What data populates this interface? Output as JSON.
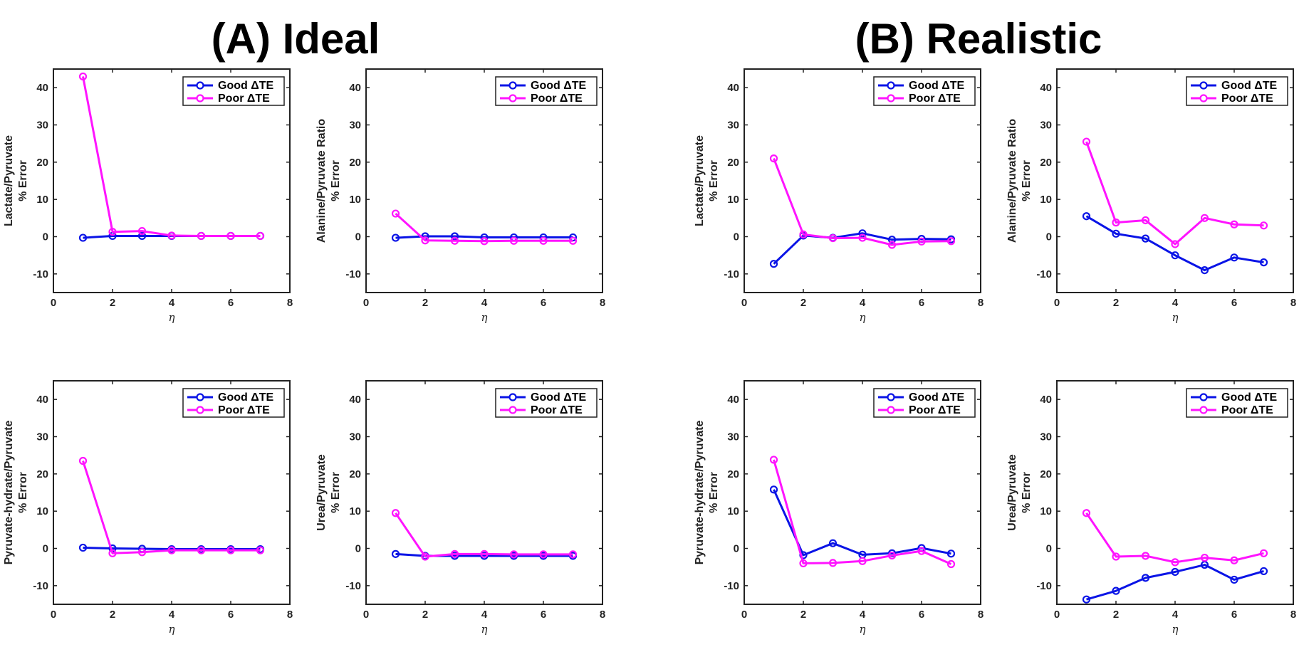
{
  "figure": {
    "title_a": "(A) Ideal",
    "title_b": "(B) Realistic"
  },
  "chart_data": [
    {
      "type": "line",
      "ylabel": [
        "Lactate/Pyruvate",
        "% Error"
      ],
      "xlabel": "η",
      "xlim": [
        0,
        8
      ],
      "ylim": [
        -15,
        45
      ],
      "xticks": [
        0,
        2,
        4,
        6,
        8
      ],
      "yticks": [
        -10,
        0,
        10,
        20,
        30,
        40
      ],
      "x": [
        1,
        2,
        3,
        4,
        5,
        6,
        7
      ],
      "legend_placement": "top-right",
      "series": [
        {
          "name": "Good ΔTE",
          "color": "#0a14e6",
          "values": [
            -0.3,
            0.2,
            0.2,
            0.2,
            0.2,
            0.2,
            0.2
          ]
        },
        {
          "name": "Poor ΔTE",
          "color": "#ff14ff",
          "values": [
            43,
            1.3,
            1.5,
            0.3,
            0.2,
            0.2,
            0.2
          ]
        }
      ]
    },
    {
      "type": "line",
      "ylabel": [
        "Alanine/Pyruvate Ratio",
        "% Error"
      ],
      "xlabel": "η",
      "xlim": [
        0,
        8
      ],
      "ylim": [
        -15,
        45
      ],
      "xticks": [
        0,
        2,
        4,
        6,
        8
      ],
      "yticks": [
        -10,
        0,
        10,
        20,
        30,
        40
      ],
      "x": [
        1,
        2,
        3,
        4,
        5,
        6,
        7
      ],
      "legend_placement": "top-right",
      "series": [
        {
          "name": "Good ΔTE",
          "color": "#0a14e6",
          "values": [
            -0.3,
            0.1,
            0.1,
            -0.2,
            -0.2,
            -0.2,
            -0.2
          ]
        },
        {
          "name": "Poor ΔTE",
          "color": "#ff14ff",
          "values": [
            6.2,
            -1.0,
            -1.1,
            -1.2,
            -1.1,
            -1.1,
            -1.1
          ]
        }
      ]
    },
    {
      "type": "line",
      "ylabel": [
        "Lactate/Pyruvate",
        "% Error"
      ],
      "xlabel": "η",
      "xlim": [
        0,
        8
      ],
      "ylim": [
        -15,
        45
      ],
      "xticks": [
        0,
        2,
        4,
        6,
        8
      ],
      "yticks": [
        -10,
        0,
        10,
        20,
        30,
        40
      ],
      "x": [
        1,
        2,
        3,
        4,
        5,
        6,
        7
      ],
      "legend_placement": "top-right",
      "series": [
        {
          "name": "Good ΔTE",
          "color": "#0a14e6",
          "values": [
            -7.3,
            0.3,
            -0.3,
            0.9,
            -0.8,
            -0.6,
            -0.7
          ]
        },
        {
          "name": "Poor ΔTE",
          "color": "#ff14ff",
          "values": [
            21,
            0.6,
            -0.4,
            -0.3,
            -2.2,
            -1.3,
            -1.2
          ]
        }
      ]
    },
    {
      "type": "line",
      "ylabel": [
        "Alanine/Pyruvate Ratio",
        "% Error"
      ],
      "xlabel": "η",
      "xlim": [
        0,
        8
      ],
      "ylim": [
        -15,
        45
      ],
      "xticks": [
        0,
        2,
        4,
        6,
        8
      ],
      "yticks": [
        -10,
        0,
        10,
        20,
        30,
        40
      ],
      "x": [
        1,
        2,
        3,
        4,
        5,
        6,
        7
      ],
      "legend_placement": "top-right",
      "series": [
        {
          "name": "Good ΔTE",
          "color": "#0a14e6",
          "values": [
            5.5,
            0.8,
            -0.5,
            -5.0,
            -9.0,
            -5.6,
            -6.9
          ]
        },
        {
          "name": "Poor ΔTE",
          "color": "#ff14ff",
          "values": [
            25.5,
            3.8,
            4.4,
            -2.0,
            5.0,
            3.3,
            3.0
          ]
        }
      ]
    },
    {
      "type": "line",
      "ylabel": [
        "Pyruvate-hydrate/Pyruvate",
        "% Error"
      ],
      "xlabel": "η",
      "xlim": [
        0,
        8
      ],
      "ylim": [
        -15,
        45
      ],
      "xticks": [
        0,
        2,
        4,
        6,
        8
      ],
      "yticks": [
        -10,
        0,
        10,
        20,
        30,
        40
      ],
      "x": [
        1,
        2,
        3,
        4,
        5,
        6,
        7
      ],
      "legend_placement": "top-right",
      "series": [
        {
          "name": "Good ΔTE",
          "color": "#0a14e6",
          "values": [
            0.2,
            0.0,
            -0.1,
            -0.2,
            -0.2,
            -0.2,
            -0.2
          ]
        },
        {
          "name": "Poor ΔTE",
          "color": "#ff14ff",
          "values": [
            23.5,
            -1.3,
            -1.0,
            -0.5,
            -0.5,
            -0.5,
            -0.5
          ]
        }
      ]
    },
    {
      "type": "line",
      "ylabel": [
        "Urea/Pyruvate",
        "% Error"
      ],
      "xlabel": "η",
      "xlim": [
        0,
        8
      ],
      "ylim": [
        -15,
        45
      ],
      "xticks": [
        0,
        2,
        4,
        6,
        8
      ],
      "yticks": [
        -10,
        0,
        10,
        20,
        30,
        40
      ],
      "x": [
        1,
        2,
        3,
        4,
        5,
        6,
        7
      ],
      "legend_placement": "top-right",
      "series": [
        {
          "name": "Good ΔTE",
          "color": "#0a14e6",
          "values": [
            -1.5,
            -2.0,
            -2.0,
            -2.0,
            -2.0,
            -2.0,
            -2.0
          ]
        },
        {
          "name": "Poor ΔTE",
          "color": "#ff14ff",
          "values": [
            9.5,
            -2.2,
            -1.5,
            -1.5,
            -1.6,
            -1.6,
            -1.6
          ]
        }
      ]
    },
    {
      "type": "line",
      "ylabel": [
        "Pyruvate-hydrate/Pyruvate",
        "% Error"
      ],
      "xlabel": "η",
      "xlim": [
        0,
        8
      ],
      "ylim": [
        -15,
        45
      ],
      "xticks": [
        0,
        2,
        4,
        6,
        8
      ],
      "yticks": [
        -10,
        0,
        10,
        20,
        30,
        40
      ],
      "x": [
        1,
        2,
        3,
        4,
        5,
        6,
        7
      ],
      "legend_placement": "top-right",
      "series": [
        {
          "name": "Good ΔTE",
          "color": "#0a14e6",
          "values": [
            15.8,
            -1.8,
            1.4,
            -1.7,
            -1.3,
            0.1,
            -1.4
          ]
        },
        {
          "name": "Poor ΔTE",
          "color": "#ff14ff",
          "values": [
            23.8,
            -4.0,
            -3.9,
            -3.4,
            -1.9,
            -0.7,
            -4.2
          ]
        }
      ]
    },
    {
      "type": "line",
      "ylabel": [
        "Urea/Pyruvate",
        "% Error"
      ],
      "xlabel": "η",
      "xlim": [
        0,
        8
      ],
      "ylim": [
        -15,
        45
      ],
      "xticks": [
        0,
        2,
        4,
        6,
        8
      ],
      "yticks": [
        -10,
        0,
        10,
        20,
        30,
        40
      ],
      "x": [
        1,
        2,
        3,
        4,
        5,
        6,
        7
      ],
      "legend_placement": "top-right",
      "series": [
        {
          "name": "Good ΔTE",
          "color": "#0a14e6",
          "values": [
            -13.7,
            -11.4,
            -7.9,
            -6.3,
            -4.4,
            -8.4,
            -6.1
          ]
        },
        {
          "name": "Poor ΔTE",
          "color": "#ff14ff",
          "values": [
            9.5,
            -2.2,
            -2.0,
            -3.7,
            -2.5,
            -3.2,
            -1.3
          ]
        }
      ]
    }
  ]
}
